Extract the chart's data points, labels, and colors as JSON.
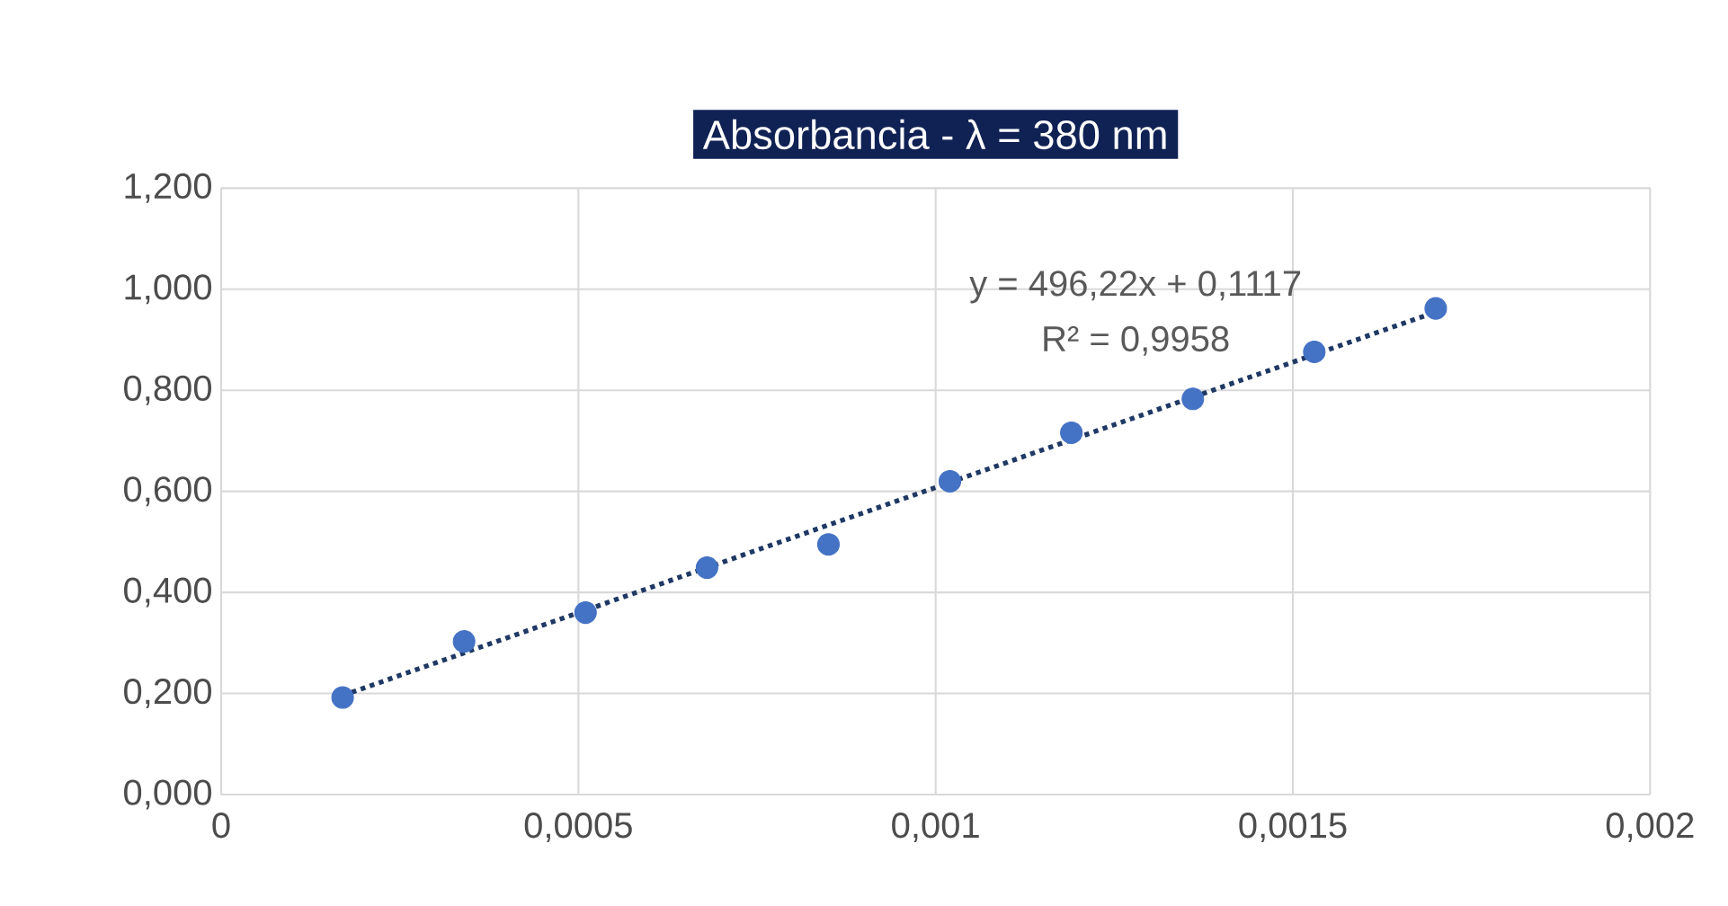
{
  "chart_data": {
    "type": "scatter",
    "title": "Absorbancia - λ = 380 nm",
    "annotations": [
      "y = 496,22x + 0,1117",
      "R² = 0,9958"
    ],
    "series": [
      {
        "color": "#4472c4",
        "marker": "circle",
        "x": [
          0.00017,
          0.00034,
          0.00051,
          0.00068,
          0.00085,
          0.00102,
          0.00119,
          0.00136,
          0.00153,
          0.0017
        ],
        "values": [
          0.192,
          0.303,
          0.36,
          0.449,
          0.495,
          0.62,
          0.716,
          0.783,
          0.876,
          0.962
        ]
      },
      {
        "type": "line",
        "color": "#1f3864",
        "line_style": "dotted",
        "marker": "none",
        "x": [
          0.00017,
          0.0017
        ],
        "values": [
          0.196,
          0.955
        ]
      }
    ],
    "xlim": [
      0,
      0.002
    ],
    "xticks": [
      {
        "value": 0,
        "label": "0"
      },
      {
        "value": 0.0005,
        "label": "0,0005"
      },
      {
        "value": 0.001,
        "label": "0,001"
      },
      {
        "value": 0.0015,
        "label": "0,0015"
      },
      {
        "value": 0.002,
        "label": "0,002"
      }
    ],
    "ylim": [
      0,
      1.2
    ],
    "yticks": [
      {
        "value": 0,
        "label": "0,000"
      },
      {
        "value": 0.2,
        "label": "0,200"
      },
      {
        "value": 0.4,
        "label": "0,400"
      },
      {
        "value": 0.6,
        "label": "0,600"
      },
      {
        "value": 0.8,
        "label": "0,800"
      },
      {
        "value": 1.0,
        "label": "1,000"
      },
      {
        "value": 1.2,
        "label": "1,200"
      }
    ],
    "grid": true
  }
}
